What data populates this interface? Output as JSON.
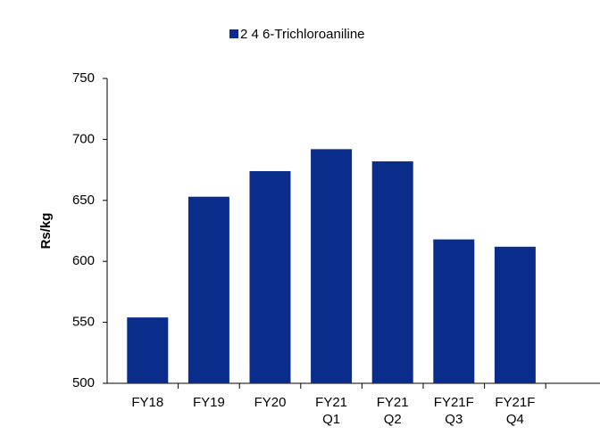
{
  "chart_data": {
    "type": "bar",
    "legend": "2 4 6-Trichloroaniline",
    "y_label": "Rs/kg",
    "categories": [
      "FY18",
      "FY19",
      "FY20",
      "FY21\nQ1",
      "FY21\nQ2",
      "FY21F\nQ3",
      "FY21F\nQ4"
    ],
    "values": [
      554,
      653,
      674,
      692,
      682,
      618,
      612
    ],
    "color": "#0a2d8c",
    "ylim": [
      500,
      750
    ],
    "yticks": [
      500,
      550,
      600,
      650,
      700,
      750
    ],
    "grid": false
  }
}
